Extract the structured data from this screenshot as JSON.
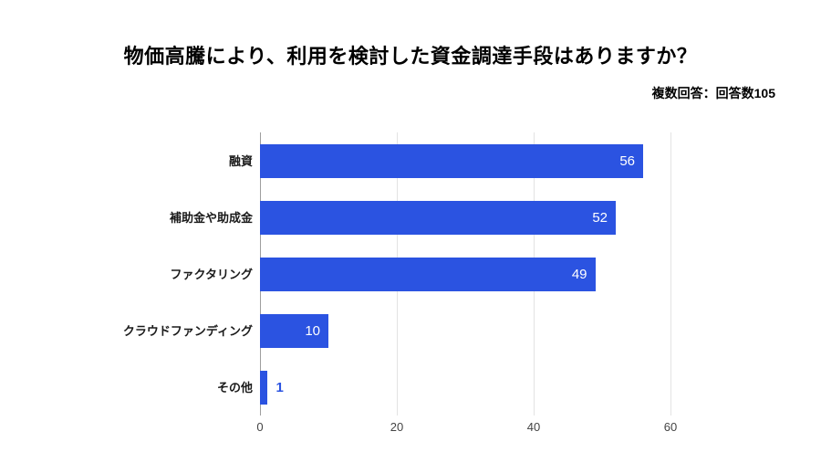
{
  "header": {
    "title": "物価高騰により、利用を検討した資金調達手段はありますか？",
    "note": "複数回答：回答数105"
  },
  "chart_data": {
    "type": "bar",
    "orientation": "horizontal",
    "title": "物価高騰により、利用を検討した資金調達手段はありますか？",
    "subtitle": "複数回答：回答数105",
    "categories": [
      "融資",
      "補助金や助成金",
      "ファクタリング",
      "クラウドファンディング",
      "その他"
    ],
    "values": [
      56,
      52,
      49,
      10,
      1
    ],
    "xlabel": "",
    "ylabel": "",
    "xlim": [
      0,
      60
    ],
    "xticks": [
      0,
      20,
      40,
      60
    ],
    "grid": true,
    "legend": "none",
    "bar_color": "#2b53e1",
    "value_label_inside_color": "#ffffff",
    "value_label_outside_color": "#2b53e1",
    "gridline_color": "#e3e3e3",
    "axis_line_color": "#9e9e9e"
  }
}
